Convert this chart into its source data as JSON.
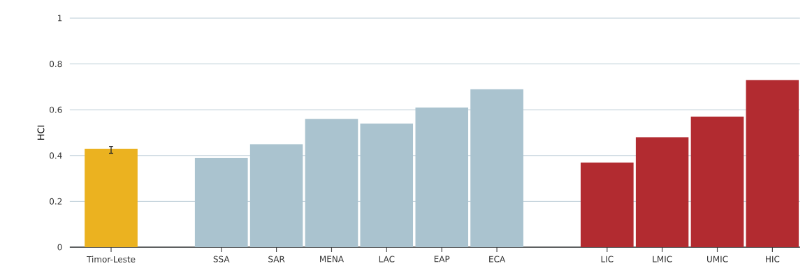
{
  "chart_data": {
    "type": "bar",
    "ylabel": "HCI",
    "categories": [
      "Timor-Leste",
      null,
      "SSA",
      "SAR",
      "MENA",
      "LAC",
      "EAP",
      "ECA",
      null,
      "LIC",
      "LMIC",
      "UMIC",
      "HIC"
    ],
    "values": [
      0.43,
      null,
      0.39,
      0.45,
      0.56,
      0.54,
      0.61,
      0.69,
      null,
      0.37,
      0.48,
      0.57,
      0.73
    ],
    "colors": [
      "#ebb220",
      "#aac3cf",
      "#aac3cf",
      "#aac3cf",
      "#aac3cf",
      "#aac3cf",
      "#aac3cf",
      "#aac3cf",
      "#aac3cf",
      "#b22b30",
      "#b22b30",
      "#b22b30",
      "#b22b30"
    ],
    "errors": [
      [
        0.41,
        0.44
      ],
      null,
      null,
      null,
      null,
      null,
      null,
      null,
      null,
      null,
      null,
      null,
      null
    ],
    "ylim": [
      0,
      1
    ],
    "yticks": [
      0,
      0.2,
      0.4,
      0.6,
      0.8,
      1
    ],
    "grid": "y"
  }
}
